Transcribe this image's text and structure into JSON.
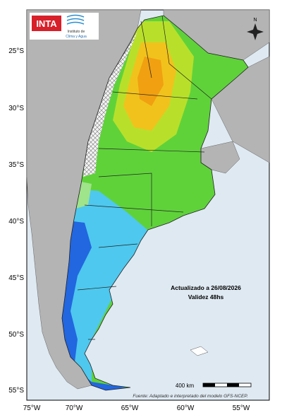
{
  "logo": {
    "brand": "INTA",
    "institute_line1": "Instituto de",
    "institute_line2": "Clima y Agua"
  },
  "compass": "N",
  "lat_labels": [
    "25°S",
    "30°S",
    "35°S",
    "40°S",
    "45°S",
    "50°S",
    "55°S"
  ],
  "lon_labels": [
    "75°W",
    "70°W",
    "65°W",
    "60°W",
    "55°W"
  ],
  "update": "Actualizado a 26/08/2026",
  "validity": "Validez 48hs",
  "scale": "400 km",
  "source": "Fuente: Adaptado e interpretado del modelo GFS-NCEP."
}
